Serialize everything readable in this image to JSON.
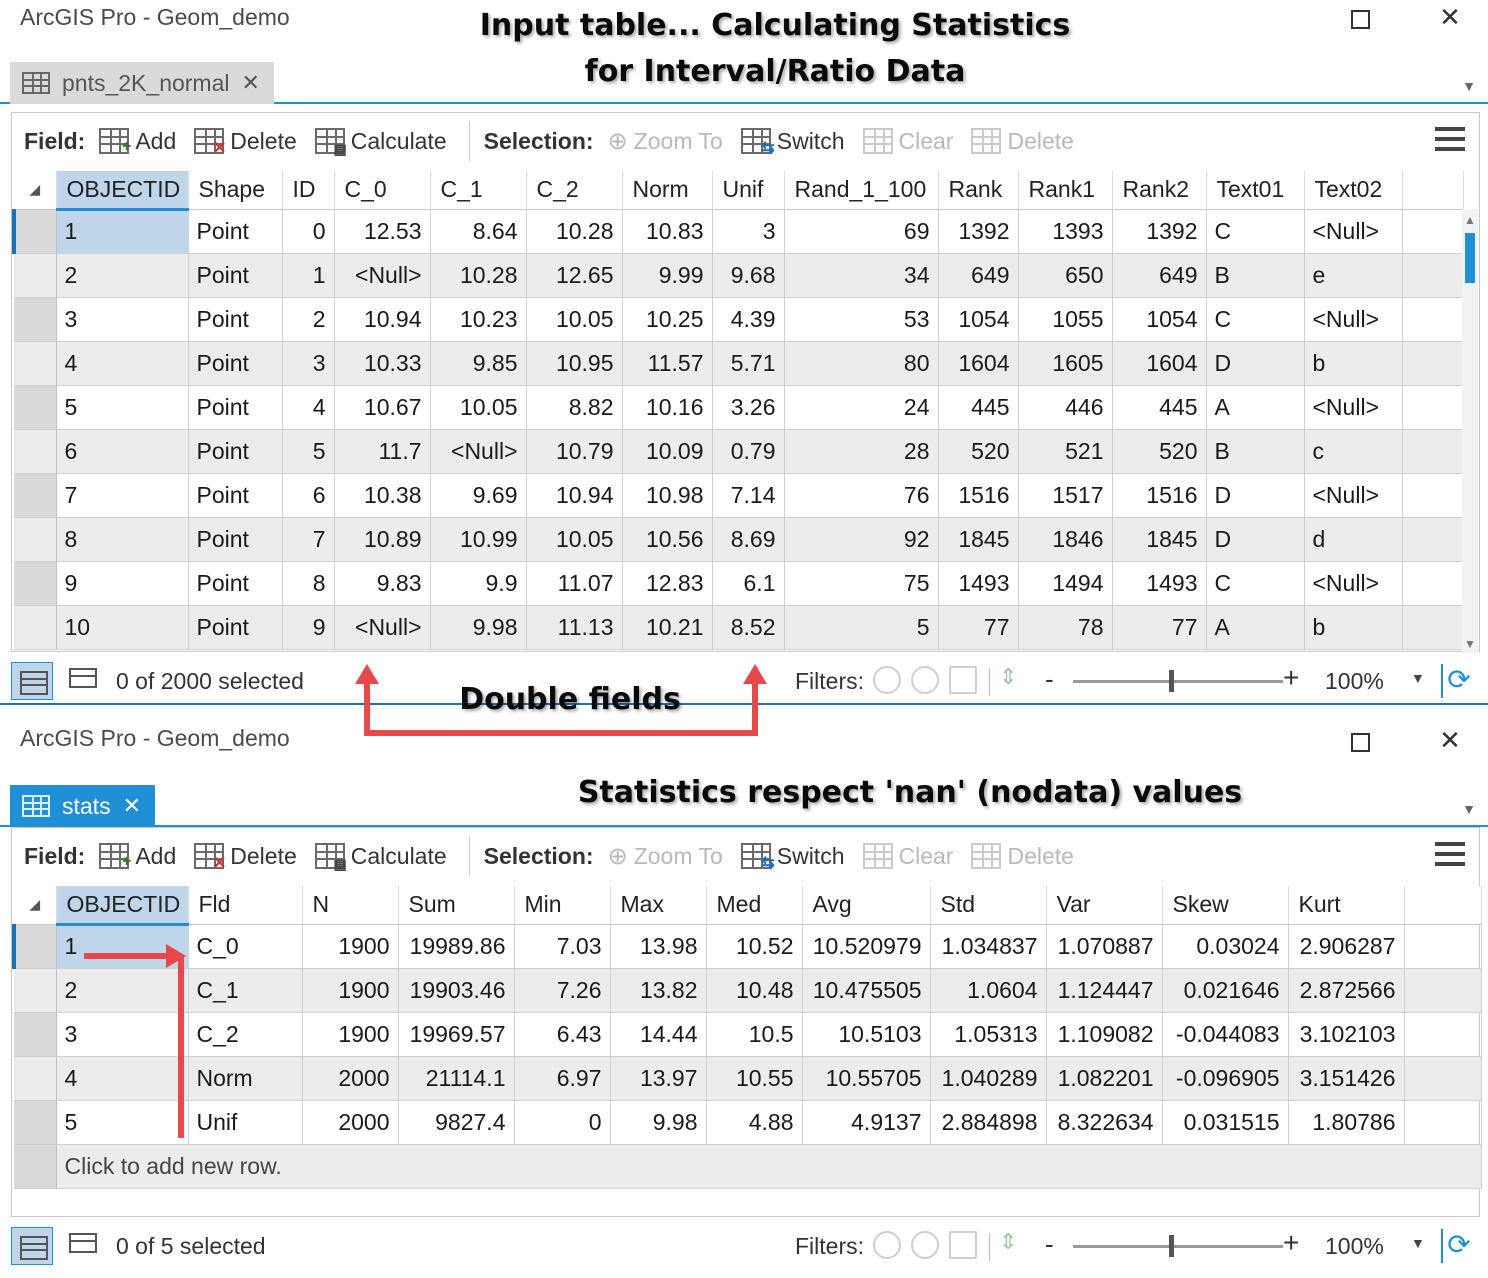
{
  "window1": {
    "title": "ArcGIS Pro - Geom_demo",
    "annotation_line1": "Input table... Calculating Statistics",
    "annotation_line2": "for Interval/Ratio Data",
    "tab_label": "pnts_2K_normal",
    "columns": [
      "OBJECTID",
      "Shape",
      "ID",
      "C_0",
      "C_1",
      "C_2",
      "Norm",
      "Unif",
      "Rand_1_100",
      "Rank",
      "Rank1",
      "Rank2",
      "Text01",
      "Text02"
    ],
    "rows": [
      [
        "1",
        "Point",
        "0",
        "12.53",
        "8.64",
        "10.28",
        "10.83",
        "3",
        "69",
        "1392",
        "1393",
        "1392",
        "C",
        "<Null>"
      ],
      [
        "2",
        "Point",
        "1",
        "<Null>",
        "10.28",
        "12.65",
        "9.99",
        "9.68",
        "34",
        "649",
        "650",
        "649",
        "B",
        "e"
      ],
      [
        "3",
        "Point",
        "2",
        "10.94",
        "10.23",
        "10.05",
        "10.25",
        "4.39",
        "53",
        "1054",
        "1055",
        "1054",
        "C",
        "<Null>"
      ],
      [
        "4",
        "Point",
        "3",
        "10.33",
        "9.85",
        "10.95",
        "11.57",
        "5.71",
        "80",
        "1604",
        "1605",
        "1604",
        "D",
        "b"
      ],
      [
        "5",
        "Point",
        "4",
        "10.67",
        "10.05",
        "8.82",
        "10.16",
        "3.26",
        "24",
        "445",
        "446",
        "445",
        "A",
        "<Null>"
      ],
      [
        "6",
        "Point",
        "5",
        "11.7",
        "<Null>",
        "10.79",
        "10.09",
        "0.79",
        "28",
        "520",
        "521",
        "520",
        "B",
        "c"
      ],
      [
        "7",
        "Point",
        "6",
        "10.38",
        "9.69",
        "10.94",
        "10.98",
        "7.14",
        "76",
        "1516",
        "1517",
        "1516",
        "D",
        "<Null>"
      ],
      [
        "8",
        "Point",
        "7",
        "10.89",
        "10.99",
        "10.05",
        "10.56",
        "8.69",
        "92",
        "1845",
        "1846",
        "1845",
        "D",
        "d"
      ],
      [
        "9",
        "Point",
        "8",
        "9.83",
        "9.9",
        "11.07",
        "12.83",
        "6.1",
        "75",
        "1493",
        "1494",
        "1493",
        "C",
        "<Null>"
      ],
      [
        "10",
        "Point",
        "9",
        "<Null>",
        "9.98",
        "11.13",
        "10.21",
        "8.52",
        "5",
        "77",
        "78",
        "77",
        "A",
        "b"
      ]
    ],
    "status_count": "0 of 2000 selected",
    "zoom": "100%"
  },
  "toolbar": {
    "field_label": "Field:",
    "add": "Add",
    "delete": "Delete",
    "calculate": "Calculate",
    "selection_label": "Selection:",
    "zoom_to": "Zoom To",
    "switch": "Switch",
    "clear": "Clear",
    "sel_delete": "Delete"
  },
  "status_common": {
    "filters": "Filters:",
    "minus": "-",
    "plus": "+"
  },
  "annotation_double_fields": "Double fields",
  "window2": {
    "title": "ArcGIS Pro - Geom_demo",
    "annotation": "Statistics respect 'nan' (nodata) values",
    "tab_label": "stats",
    "columns": [
      "OBJECTID",
      "Fld",
      "N",
      "Sum",
      "Min",
      "Max",
      "Med",
      "Avg",
      "Std",
      "Var",
      "Skew",
      "Kurt"
    ],
    "rows": [
      [
        "1",
        "C_0",
        "1900",
        "19989.86",
        "7.03",
        "13.98",
        "10.52",
        "10.520979",
        "1.034837",
        "1.070887",
        "0.03024",
        "2.906287"
      ],
      [
        "2",
        "C_1",
        "1900",
        "19903.46",
        "7.26",
        "13.82",
        "10.48",
        "10.475505",
        "1.0604",
        "1.124447",
        "0.021646",
        "2.872566"
      ],
      [
        "3",
        "C_2",
        "1900",
        "19969.57",
        "6.43",
        "14.44",
        "10.5",
        "10.5103",
        "1.05313",
        "1.109082",
        "-0.044083",
        "3.102103"
      ],
      [
        "4",
        "Norm",
        "2000",
        "21114.1",
        "6.97",
        "13.97",
        "10.55",
        "10.55705",
        "1.040289",
        "1.082201",
        "-0.096905",
        "3.151426"
      ],
      [
        "5",
        "Unif",
        "2000",
        "9827.4",
        "0",
        "9.98",
        "4.88",
        "4.9137",
        "2.884898",
        "8.322634",
        "0.031515",
        "1.80786"
      ]
    ],
    "new_row": "Click to add new row.",
    "status_count": "0 of 5 selected",
    "zoom": "100%"
  },
  "colors": {
    "accent": "#1f8fd6",
    "selected_header": "#bfd6ea",
    "annotation_arrow": "#e8484a"
  }
}
